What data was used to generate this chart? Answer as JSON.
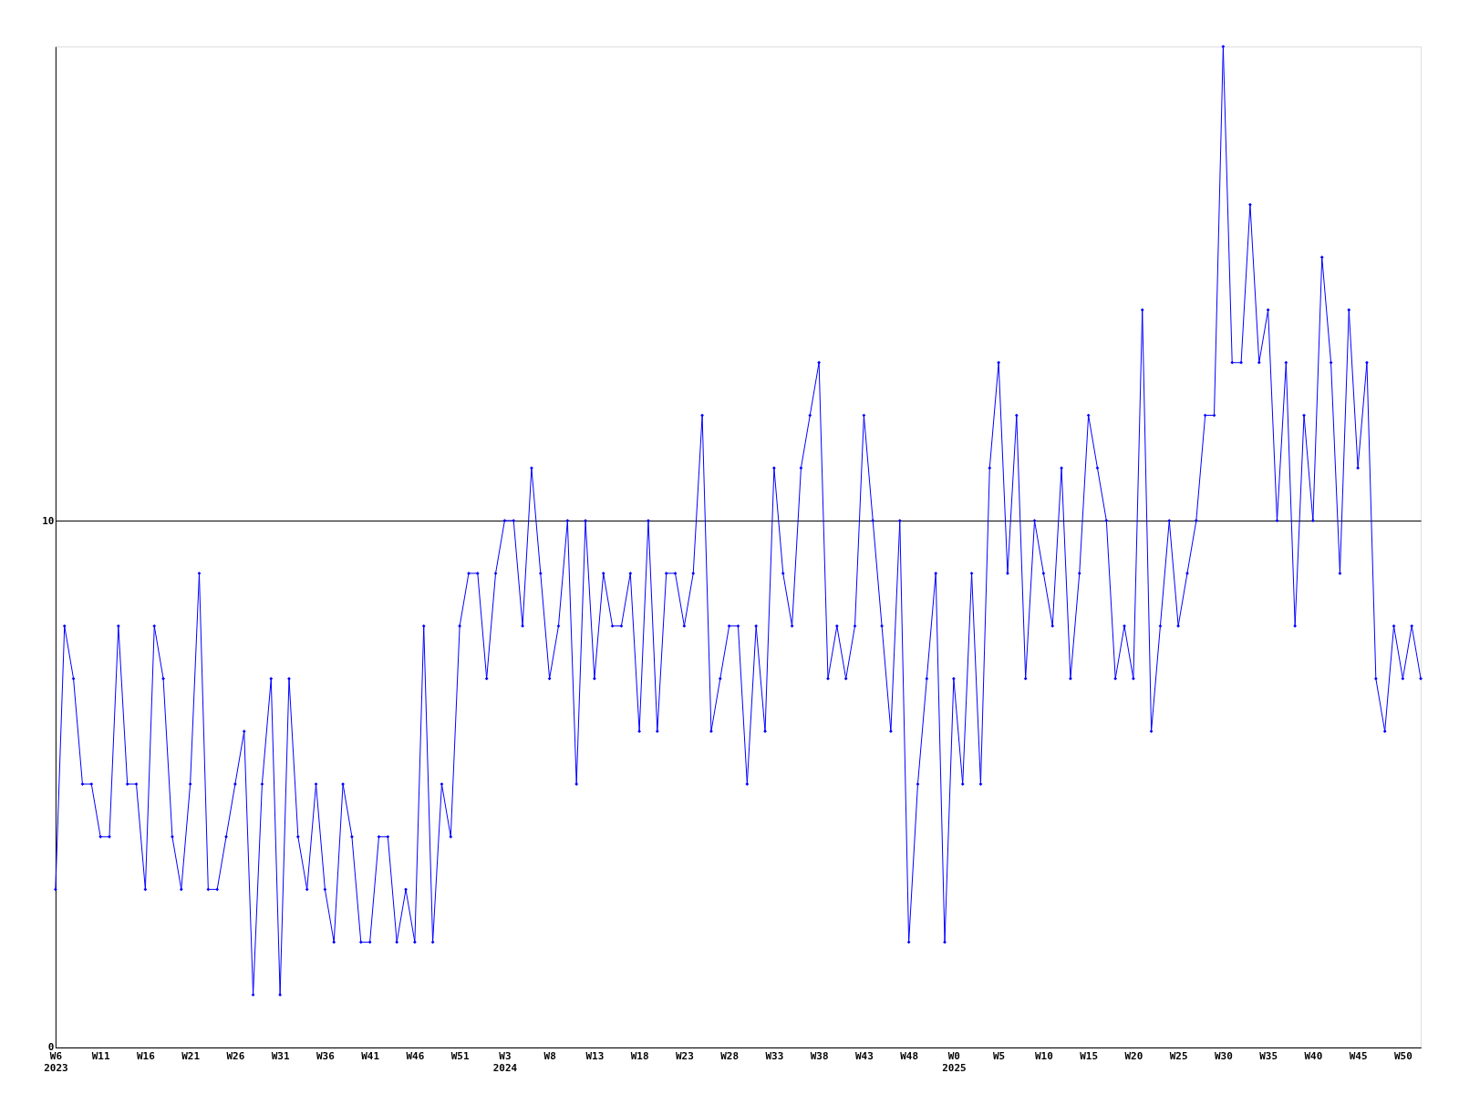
{
  "chart_data": {
    "type": "line",
    "categories": [
      "W6\n2023",
      null,
      null,
      null,
      null,
      "W11",
      null,
      null,
      null,
      null,
      "W16",
      null,
      null,
      null,
      null,
      "W21",
      null,
      null,
      null,
      null,
      "W26",
      null,
      null,
      null,
      null,
      "W31",
      null,
      null,
      null,
      null,
      "W36",
      null,
      null,
      null,
      null,
      "W41",
      null,
      null,
      null,
      null,
      "W46",
      null,
      null,
      null,
      null,
      "W51",
      null,
      null,
      null,
      null,
      "W3\n2024",
      null,
      null,
      null,
      null,
      "W8",
      null,
      null,
      null,
      null,
      "W13",
      null,
      null,
      null,
      null,
      "W18",
      null,
      null,
      null,
      null,
      "W23",
      null,
      null,
      null,
      null,
      "W28",
      null,
      null,
      null,
      null,
      "W33",
      null,
      null,
      null,
      null,
      "W38",
      null,
      null,
      null,
      null,
      "W43",
      null,
      null,
      null,
      null,
      "W48",
      null,
      null,
      null,
      null,
      "W0\n2025",
      null,
      null,
      null,
      null,
      "W5",
      null,
      null,
      null,
      null,
      "W10",
      null,
      null,
      null,
      null,
      "W15",
      null,
      null,
      null,
      null,
      "W20",
      null,
      null,
      null,
      null,
      "W25",
      null,
      null,
      null,
      null,
      "W30",
      null,
      null,
      null,
      null,
      "W35",
      null,
      null,
      null,
      null,
      "W40",
      null,
      null,
      null,
      null,
      "W45",
      null,
      null,
      null,
      null,
      "W50",
      null,
      null
    ],
    "series": [
      {
        "color": "#0000ff",
        "values": [
          3,
          8,
          7,
          5,
          5,
          4,
          4,
          8,
          5,
          5,
          3,
          8,
          7,
          4,
          3,
          5,
          9,
          3,
          3,
          4,
          5,
          6,
          1,
          5,
          7,
          1,
          7,
          4,
          3,
          5,
          3,
          2,
          5,
          4,
          2,
          2,
          4,
          4,
          2,
          3,
          2,
          8,
          2,
          5,
          4,
          8,
          9,
          9,
          7,
          9,
          10,
          10,
          8,
          11,
          9,
          7,
          8,
          10,
          5,
          10,
          7,
          9,
          8,
          8,
          9,
          6,
          10,
          6,
          9,
          9,
          8,
          9,
          12,
          6,
          7,
          8,
          8,
          5,
          8,
          6,
          11,
          9,
          8,
          11,
          12,
          13,
          7,
          8,
          7,
          8,
          12,
          10,
          8,
          6,
          10,
          2,
          5,
          7,
          9,
          2,
          7,
          5,
          9,
          5,
          11,
          13,
          9,
          12,
          7,
          10,
          9,
          8,
          11,
          7,
          9,
          12,
          11,
          10,
          7,
          8,
          7,
          14,
          6,
          8,
          10,
          8,
          9,
          10,
          12,
          12,
          19,
          13,
          13,
          16,
          13,
          14,
          10,
          13,
          8,
          12,
          10,
          15,
          13,
          9,
          14,
          11,
          13,
          7,
          6,
          8,
          7,
          8,
          7
        ]
      }
    ],
    "ylim": [
      0,
      19
    ],
    "yticks": [
      0,
      10
    ],
    "grid": "y",
    "marker": "diamond",
    "line_style": "solid"
  }
}
